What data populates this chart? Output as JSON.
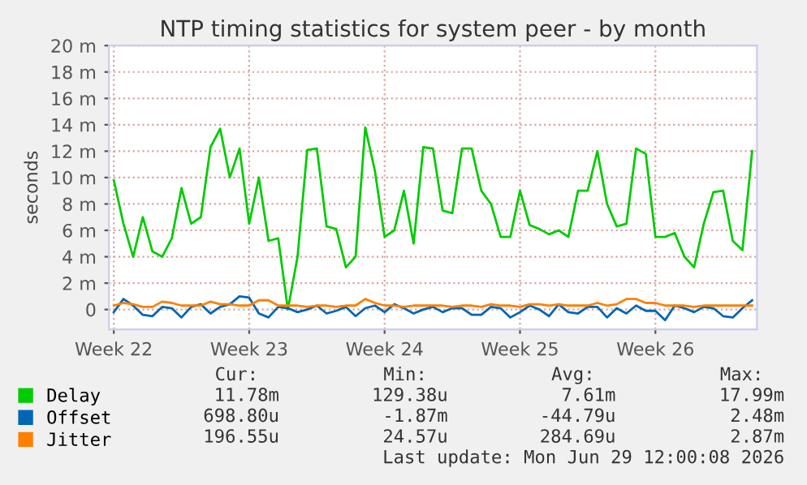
{
  "chart_data": {
    "type": "line",
    "title": "NTP timing statistics for system peer - by month",
    "ylabel": "seconds",
    "categories": [
      "Week 22",
      null,
      null,
      null,
      null,
      null,
      null,
      null,
      null,
      null,
      null,
      null,
      null,
      null,
      "Week 23",
      null,
      null,
      null,
      null,
      null,
      null,
      null,
      null,
      null,
      null,
      null,
      null,
      null,
      "Week 24",
      null,
      null,
      null,
      null,
      null,
      null,
      null,
      null,
      null,
      null,
      null,
      null,
      null,
      "Week 25",
      null,
      null,
      null,
      null,
      null,
      null,
      null,
      null,
      null,
      null,
      null,
      null,
      null,
      "Week 26",
      null,
      null,
      null,
      null,
      null,
      null,
      null,
      null,
      null,
      null
    ],
    "ylim": [
      -1.5,
      20
    ],
    "yticks": [
      {
        "value": 0,
        "label": "0"
      },
      {
        "value": 2,
        "label": "2 m"
      },
      {
        "value": 4,
        "label": "4 m"
      },
      {
        "value": 6,
        "label": "6 m"
      },
      {
        "value": 8,
        "label": "8 m"
      },
      {
        "value": 10,
        "label": "10 m"
      },
      {
        "value": 12,
        "label": "12 m"
      },
      {
        "value": 14,
        "label": "14 m"
      },
      {
        "value": 16,
        "label": "16 m"
      },
      {
        "value": 18,
        "label": "18 m"
      },
      {
        "value": 20,
        "label": "20 m"
      }
    ],
    "grid": true,
    "legend": "bottom left",
    "series": [
      {
        "name": "Delay",
        "color": "#00cc00",
        "values": [
          9.8,
          6.5,
          4,
          7,
          4.4,
          4,
          5.4,
          9.2,
          6.5,
          7,
          12.3,
          13.7,
          10,
          12.2,
          6.5,
          10,
          5.2,
          5.4,
          0,
          4,
          12.1,
          12.2,
          6.3,
          6.1,
          3.2,
          4,
          13.8,
          10.5,
          5.5,
          6,
          9,
          5,
          12.3,
          12.2,
          7.5,
          7.3,
          12.2,
          12.2,
          9,
          8,
          5.5,
          5.5,
          9,
          6.4,
          6.1,
          5.7,
          6,
          5.5,
          9,
          9,
          12,
          8,
          6.3,
          6.5,
          12.2,
          11.8,
          5.5,
          5.5,
          5.8,
          4,
          3.2,
          6.5,
          8.9,
          9,
          5.2,
          4.5,
          12
        ]
      },
      {
        "name": "Offset",
        "color": "#0066b3",
        "values": [
          -0.2,
          0.8,
          0.3,
          -0.4,
          -0.5,
          0.2,
          0.1,
          -0.6,
          0.2,
          0.4,
          -0.3,
          0.2,
          0.4,
          1.0,
          0.9,
          -0.3,
          -0.6,
          0.2,
          0.1,
          -0.2,
          0.0,
          0.3,
          -0.3,
          -0.1,
          0.2,
          -0.5,
          0.1,
          0.3,
          -0.2,
          0.4,
          0.1,
          -0.3,
          0.0,
          0.2,
          -0.2,
          0.1,
          0.1,
          -0.4,
          -0.4,
          0.2,
          0.1,
          -0.6,
          -0.2,
          0.3,
          0.0,
          -0.5,
          0.4,
          -0.2,
          -0.3,
          0.2,
          0.2,
          -0.6,
          0.1,
          -0.3,
          0.3,
          -0.1,
          -0.1,
          -0.8,
          0.3,
          0.1,
          -0.2,
          0.2,
          0.1,
          -0.5,
          -0.6,
          0.1,
          0.7
        ]
      },
      {
        "name": "Jitter",
        "color": "#ff8000",
        "values": [
          0.3,
          0.5,
          0.4,
          0.2,
          0.2,
          0.6,
          0.5,
          0.3,
          0.3,
          0.3,
          0.6,
          0.4,
          0.4,
          0.3,
          0.3,
          0.7,
          0.7,
          0.3,
          0.3,
          0.3,
          0.2,
          0.3,
          0.3,
          0.2,
          0.3,
          0.3,
          0.8,
          0.5,
          0.3,
          0.3,
          0.2,
          0.3,
          0.3,
          0.3,
          0.3,
          0.2,
          0.3,
          0.3,
          0.2,
          0.4,
          0.3,
          0.3,
          0.2,
          0.4,
          0.4,
          0.3,
          0.4,
          0.3,
          0.3,
          0.3,
          0.5,
          0.3,
          0.4,
          0.8,
          0.8,
          0.5,
          0.5,
          0.3,
          0.3,
          0.3,
          0.2,
          0.3,
          0.3,
          0.3,
          0.3,
          0.3,
          0.3
        ]
      }
    ],
    "annotations": [
      "Cur:",
      "Min:",
      "Avg:",
      "Max:",
      "11.78m",
      "129.38u",
      "7.61m",
      "17.99m",
      "698.80u",
      "-1.87m",
      "-44.79u",
      "2.48m",
      "196.55u",
      "24.57u",
      "284.69u",
      "2.87m",
      "Last update: Mon Jun 29 12:00:08 2026"
    ]
  }
}
